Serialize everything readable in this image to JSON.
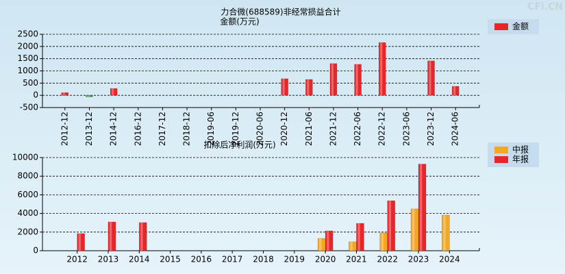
{
  "watermark": "CFi.CN",
  "chart_data": [
    {
      "type": "bar",
      "title": "力合微(688589)非经常损益合计",
      "y_label": "金额(万元)",
      "categories": [
        "2012-12",
        "2013-12",
        "2014-12",
        "2016-12",
        "2017-12",
        "2018-12",
        "2019-06",
        "2019-12",
        "2020-06",
        "2020-12",
        "2021-06",
        "2021-12",
        "2022-06",
        "2022-12",
        "2023-06",
        "2023-12",
        "2024-06"
      ],
      "series": [
        {
          "name": "金额",
          "color": "#e8262a",
          "negative_color": "#3a9a3a",
          "values": [
            110,
            -60,
            280,
            null,
            null,
            null,
            null,
            null,
            null,
            680,
            650,
            1300,
            1270,
            2160,
            null,
            1410,
            370
          ]
        }
      ],
      "ylim": [
        -500,
        2500
      ],
      "yticks": [
        -500,
        0,
        500,
        1000,
        1500,
        2000,
        2500
      ],
      "grid": true
    },
    {
      "type": "bar",
      "title": "扣除后净利润(万元)",
      "categories": [
        "2012",
        "2013",
        "2014",
        "2015",
        "2016",
        "2017",
        "2018",
        "2019",
        "2020",
        "2021",
        "2022",
        "2023",
        "2024"
      ],
      "series": [
        {
          "name": "中报",
          "color": "#f5a623",
          "values": [
            null,
            null,
            null,
            null,
            null,
            null,
            null,
            null,
            1320,
            960,
            1910,
            4490,
            3820
          ]
        },
        {
          "name": "年报",
          "color": "#e8262a",
          "values": [
            1840,
            3090,
            3020,
            null,
            null,
            null,
            null,
            null,
            2130,
            2940,
            5370,
            9300,
            null
          ]
        }
      ],
      "ylim": [
        0,
        10000
      ],
      "yticks": [
        0,
        2000,
        4000,
        6000,
        8000,
        10000
      ],
      "grid": true
    }
  ]
}
